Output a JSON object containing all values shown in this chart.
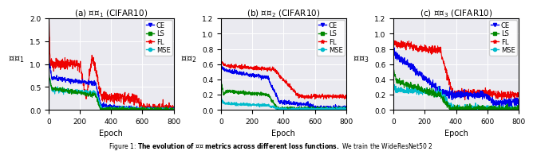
{
  "subtitles": [
    "(a) $\\mathcal{NC}_1$ (CIFAR10)",
    "(b) $\\mathcal{NC}_2$ (CIFAR10)",
    "(c) $\\mathcal{NC}_3$ (CIFAR10)"
  ],
  "ylabel_1": "$\\mathcal{NC}_1$",
  "ylabel_2": "$\\mathcal{NC}_2$",
  "ylabel_3": "$\\mathcal{NC}_3$",
  "xlabel": "Epoch",
  "xlim": [
    0,
    800
  ],
  "ylim_1": [
    0.0,
    2.0
  ],
  "ylim_2": [
    0.0,
    1.2
  ],
  "ylim_3": [
    0.0,
    1.2
  ],
  "yticks_1": [
    0.0,
    0.5,
    1.0,
    1.5,
    2.0
  ],
  "yticks_2": [
    0.0,
    0.2,
    0.4,
    0.6,
    0.8,
    1.0,
    1.2
  ],
  "yticks_3": [
    0.0,
    0.2,
    0.4,
    0.6,
    0.8,
    1.0,
    1.2
  ],
  "colors": {
    "CE": "#0000ee",
    "LS": "#008800",
    "FL": "#ee0000",
    "MSE": "#00bbcc"
  },
  "caption": "Figure 1: ",
  "caption_bold": "The evolution of $\\mathcal{NC}$ metrics across different loss functions.",
  "caption_rest": " We train the WideResNet50 2",
  "background_color": "#eaeaf0"
}
